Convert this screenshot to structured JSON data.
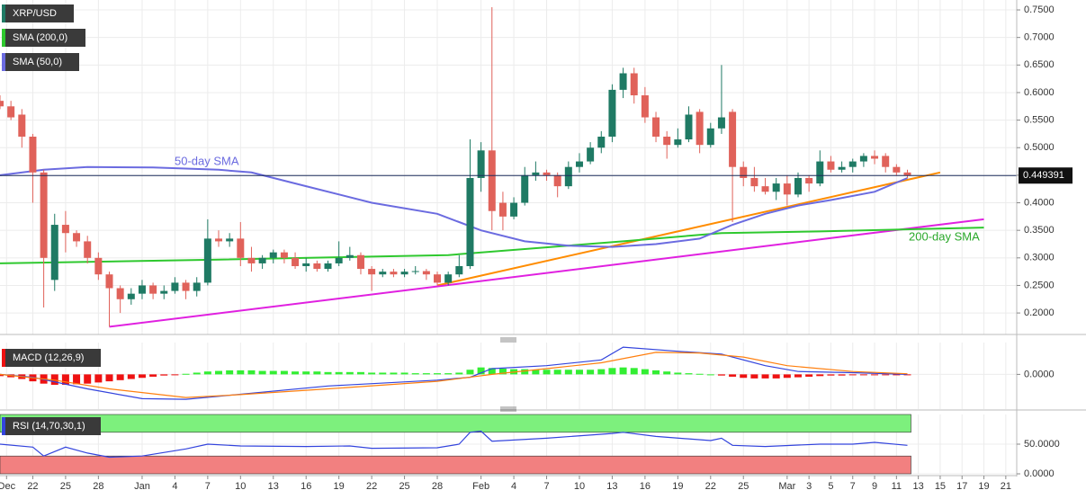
{
  "chart_data": [
    {
      "type": "candlestick",
      "name": "XRP/USD",
      "up_color": "#1f7a64",
      "down_color": "#e0625a",
      "x": [
        0,
        1,
        2,
        3,
        4,
        5,
        6,
        7,
        8,
        9,
        10,
        11,
        12,
        13,
        14,
        15,
        16,
        17,
        18,
        19,
        20,
        21,
        22,
        23,
        24,
        25,
        26,
        27,
        28,
        29,
        30,
        31,
        32,
        33,
        34,
        35,
        36,
        37,
        38,
        39,
        40,
        41,
        42,
        43,
        44,
        45,
        46,
        47,
        48,
        49,
        50,
        51,
        52,
        53,
        54,
        55,
        56,
        57,
        58,
        59,
        60,
        61,
        62,
        63,
        64,
        65,
        66,
        67,
        68,
        69,
        70,
        71,
        72,
        73,
        74,
        75,
        76,
        77,
        78,
        79,
        80,
        81,
        82,
        83
      ],
      "open": [
        0.585,
        0.575,
        0.56,
        0.52,
        0.455,
        0.26,
        0.36,
        0.345,
        0.33,
        0.3,
        0.27,
        0.245,
        0.225,
        0.235,
        0.25,
        0.235,
        0.24,
        0.255,
        0.24,
        0.255,
        0.335,
        0.33,
        0.335,
        0.3,
        0.29,
        0.3,
        0.31,
        0.3,
        0.285,
        0.29,
        0.28,
        0.29,
        0.3,
        0.305,
        0.28,
        0.27,
        0.275,
        0.27,
        0.275,
        0.276,
        0.27,
        0.255,
        0.27,
        0.285,
        0.445,
        0.495,
        0.4,
        0.375,
        0.4,
        0.45,
        0.455,
        0.45,
        0.43,
        0.465,
        0.475,
        0.5,
        0.52,
        0.605,
        0.635,
        0.595,
        0.555,
        0.52,
        0.505,
        0.515,
        0.565,
        0.505,
        0.535,
        0.565,
        0.465,
        0.445,
        0.43,
        0.42,
        0.435,
        0.415,
        0.445,
        0.435,
        0.475,
        0.46,
        0.465,
        0.475,
        0.485,
        0.485,
        0.465,
        0.455
      ],
      "high": [
        0.595,
        0.585,
        0.57,
        0.525,
        0.46,
        0.38,
        0.385,
        0.35,
        0.34,
        0.31,
        0.275,
        0.25,
        0.245,
        0.26,
        0.255,
        0.25,
        0.265,
        0.26,
        0.265,
        0.37,
        0.35,
        0.345,
        0.365,
        0.32,
        0.305,
        0.315,
        0.315,
        0.31,
        0.3,
        0.295,
        0.295,
        0.33,
        0.32,
        0.31,
        0.285,
        0.28,
        0.28,
        0.28,
        0.285,
        0.28,
        0.275,
        0.275,
        0.305,
        0.515,
        0.51,
        0.755,
        0.42,
        0.41,
        0.465,
        0.475,
        0.46,
        0.455,
        0.475,
        0.49,
        0.51,
        0.53,
        0.615,
        0.645,
        0.645,
        0.61,
        0.565,
        0.53,
        0.535,
        0.575,
        0.57,
        0.545,
        0.65,
        0.57,
        0.475,
        0.465,
        0.445,
        0.445,
        0.45,
        0.455,
        0.45,
        0.495,
        0.485,
        0.475,
        0.48,
        0.49,
        0.495,
        0.49,
        0.47,
        0.46
      ],
      "low": [
        0.57,
        0.55,
        0.5,
        0.4,
        0.21,
        0.24,
        0.31,
        0.32,
        0.29,
        0.26,
        0.175,
        0.2,
        0.215,
        0.225,
        0.225,
        0.225,
        0.235,
        0.225,
        0.23,
        0.25,
        0.32,
        0.32,
        0.285,
        0.275,
        0.28,
        0.29,
        0.29,
        0.28,
        0.275,
        0.275,
        0.275,
        0.285,
        0.295,
        0.27,
        0.24,
        0.265,
        0.265,
        0.265,
        0.27,
        0.26,
        0.25,
        0.25,
        0.265,
        0.28,
        0.42,
        0.35,
        0.35,
        0.37,
        0.395,
        0.44,
        0.44,
        0.41,
        0.425,
        0.455,
        0.47,
        0.49,
        0.51,
        0.59,
        0.58,
        0.545,
        0.51,
        0.48,
        0.5,
        0.51,
        0.49,
        0.5,
        0.525,
        0.365,
        0.43,
        0.42,
        0.415,
        0.405,
        0.395,
        0.41,
        0.42,
        0.43,
        0.455,
        0.455,
        0.455,
        0.465,
        0.47,
        0.455,
        0.45,
        0.445
      ],
      "close": [
        0.575,
        0.555,
        0.52,
        0.455,
        0.3,
        0.36,
        0.345,
        0.33,
        0.3,
        0.27,
        0.245,
        0.225,
        0.235,
        0.25,
        0.235,
        0.24,
        0.255,
        0.24,
        0.255,
        0.335,
        0.33,
        0.335,
        0.3,
        0.29,
        0.3,
        0.31,
        0.3,
        0.285,
        0.29,
        0.28,
        0.29,
        0.3,
        0.305,
        0.28,
        0.27,
        0.275,
        0.27,
        0.275,
        0.276,
        0.27,
        0.255,
        0.27,
        0.285,
        0.445,
        0.495,
        0.385,
        0.375,
        0.4,
        0.45,
        0.455,
        0.45,
        0.43,
        0.465,
        0.475,
        0.5,
        0.52,
        0.605,
        0.635,
        0.595,
        0.555,
        0.52,
        0.505,
        0.515,
        0.56,
        0.505,
        0.535,
        0.555,
        0.465,
        0.445,
        0.43,
        0.42,
        0.435,
        0.415,
        0.445,
        0.435,
        0.475,
        0.46,
        0.465,
        0.475,
        0.485,
        0.48,
        0.465,
        0.455,
        0.449391
      ],
      "last_price": 0.449391,
      "lines": [
        {
          "name": "SMA (200,0)",
          "color": "#2ec82e",
          "x": [
            0,
            20,
            41,
            57,
            66,
            75,
            90
          ],
          "values": [
            0.29,
            0.297,
            0.305,
            0.33,
            0.345,
            0.348,
            0.355
          ]
        },
        {
          "name": "SMA (50,0)",
          "color": "#6b6be0",
          "x": [
            0,
            4,
            8,
            14,
            20,
            23,
            28,
            34,
            40,
            44,
            48,
            52,
            56,
            60,
            64,
            67,
            70,
            73,
            76,
            80,
            83
          ],
          "values": [
            0.45,
            0.46,
            0.465,
            0.464,
            0.46,
            0.455,
            0.43,
            0.4,
            0.38,
            0.35,
            0.33,
            0.322,
            0.32,
            0.325,
            0.335,
            0.36,
            0.38,
            0.395,
            0.405,
            0.42,
            0.445
          ]
        }
      ],
      "trendlines": [
        {
          "color": "#ff8c00",
          "x": [
            40,
            86
          ],
          "values": [
            0.25,
            0.455
          ]
        },
        {
          "color": "#e020e0",
          "x": [
            10,
            90
          ],
          "values": [
            0.175,
            0.37
          ]
        }
      ],
      "annotations": [
        "50-day SMA",
        "200-day SMA"
      ],
      "xlim": [
        0,
        93
      ],
      "ylim": [
        0.161,
        0.768
      ],
      "yticks": [
        {
          "value": 0.2,
          "label": "0.2000"
        },
        {
          "value": 0.25,
          "label": "0.2500"
        },
        {
          "value": 0.3,
          "label": "0.3000"
        },
        {
          "value": 0.35,
          "label": "0.3500"
        },
        {
          "value": 0.4,
          "label": "0.4000"
        },
        {
          "value": 0.45,
          "label": "0.4500"
        },
        {
          "value": 0.5,
          "label": "0.5000"
        },
        {
          "value": 0.55,
          "label": "0.5500"
        },
        {
          "value": 0.6,
          "label": "0.6000"
        },
        {
          "value": 0.65,
          "label": "0.6500"
        },
        {
          "value": 0.7,
          "label": "0.7000"
        },
        {
          "value": 0.75,
          "label": "0.7500"
        }
      ]
    },
    {
      "type": "macd",
      "name": "MACD (12,26,9)",
      "up_color": "#33ee33",
      "down_color": "#ee1111",
      "histogram": [
        -0.003,
        -0.005,
        -0.008,
        -0.012,
        -0.016,
        -0.018,
        -0.018,
        -0.017,
        -0.016,
        -0.014,
        -0.012,
        -0.01,
        -0.008,
        -0.006,
        -0.004,
        -0.002,
        -0.001,
        0.001,
        0.003,
        0.005,
        0.006,
        0.007,
        0.007,
        0.007,
        0.006,
        0.006,
        0.006,
        0.005,
        0.005,
        0.005,
        0.004,
        0.004,
        0.004,
        0.004,
        0.003,
        0.003,
        0.003,
        0.003,
        0.002,
        0.002,
        0.002,
        0.002,
        0.003,
        0.008,
        0.012,
        0.011,
        0.01,
        0.009,
        0.009,
        0.008,
        0.008,
        0.008,
        0.008,
        0.008,
        0.008,
        0.009,
        0.011,
        0.012,
        0.011,
        0.009,
        0.007,
        0.005,
        0.003,
        0.002,
        0.001,
        0,
        -0.002,
        -0.004,
        -0.006,
        -0.007,
        -0.007,
        -0.007,
        -0.006,
        -0.005,
        -0.004,
        -0.003,
        -0.002,
        -0.002,
        -0.001,
        -0.001,
        -0.001,
        -0.001,
        -0.001,
        -0.001
      ],
      "lines": [
        {
          "color": "#3344dd",
          "x": [
            0,
            3,
            8,
            13,
            17,
            20,
            30,
            40,
            43,
            45,
            50,
            55,
            57,
            62,
            66,
            70,
            73,
            78,
            83
          ],
          "values": [
            0,
            -0.005,
            -0.025,
            -0.042,
            -0.043,
            -0.038,
            -0.02,
            -0.01,
            -0.005,
            0.01,
            0.015,
            0.025,
            0.047,
            0.04,
            0.035,
            0.015,
            0.005,
            0.003,
            0
          ]
        },
        {
          "color": "#ff7f0e",
          "x": [
            0,
            5,
            10,
            17,
            22,
            30,
            40,
            45,
            50,
            55,
            60,
            64,
            68,
            72,
            78,
            83
          ],
          "values": [
            0,
            -0.01,
            -0.025,
            -0.04,
            -0.035,
            -0.025,
            -0.012,
            0,
            0.01,
            0.02,
            0.038,
            0.037,
            0.03,
            0.015,
            0.005,
            0.001
          ]
        }
      ],
      "ylim": [
        -0.06,
        0.055
      ],
      "yticks": [
        {
          "value": 0,
          "label": "0.0000"
        }
      ]
    },
    {
      "type": "rsi",
      "name": "RSI (14,70,30,1)",
      "upper": 70,
      "lower": 30,
      "upper_color": "#7df07d",
      "lower_color": "#f28080",
      "line_color": "#3344dd",
      "x": [
        0,
        3,
        4,
        6,
        8,
        10,
        13,
        17,
        19,
        22,
        28,
        32,
        34,
        40,
        42,
        43,
        44,
        45,
        50,
        56,
        57,
        60,
        65,
        66,
        67,
        70,
        75,
        78,
        80,
        83
      ],
      "values": [
        50,
        45,
        30,
        45,
        35,
        28,
        30,
        42,
        50,
        47,
        46,
        47,
        43,
        44,
        50,
        70,
        72,
        55,
        60,
        68,
        70,
        63,
        56,
        60,
        48,
        46,
        50,
        50,
        53,
        48
      ],
      "ylim": [
        0,
        100
      ],
      "yticks": [
        {
          "value": 0,
          "label": "0.0000"
        },
        {
          "value": 50,
          "label": "50.0000"
        }
      ],
      "xticks": [
        {
          "value": 0.6,
          "label": "Dec"
        },
        {
          "value": 3,
          "label": "22"
        },
        {
          "value": 6,
          "label": "25"
        },
        {
          "value": 9,
          "label": "28"
        },
        {
          "value": 13,
          "label": "Jan"
        },
        {
          "value": 16,
          "label": "4"
        },
        {
          "value": 19,
          "label": "7"
        },
        {
          "value": 22,
          "label": "10"
        },
        {
          "value": 25,
          "label": "13"
        },
        {
          "value": 28,
          "label": "16"
        },
        {
          "value": 31,
          "label": "19"
        },
        {
          "value": 34,
          "label": "22"
        },
        {
          "value": 37,
          "label": "25"
        },
        {
          "value": 40,
          "label": "28"
        },
        {
          "value": 44,
          "label": "Feb"
        },
        {
          "value": 47,
          "label": "4"
        },
        {
          "value": 50,
          "label": "7"
        },
        {
          "value": 53,
          "label": "10"
        },
        {
          "value": 56,
          "label": "13"
        },
        {
          "value": 59,
          "label": "16"
        },
        {
          "value": 62,
          "label": "19"
        },
        {
          "value": 65,
          "label": "22"
        },
        {
          "value": 68,
          "label": "25"
        },
        {
          "value": 72,
          "label": "Mar"
        },
        {
          "value": 74,
          "label": "3"
        },
        {
          "value": 76,
          "label": "5"
        },
        {
          "value": 78,
          "label": "7"
        },
        {
          "value": 80,
          "label": "9"
        },
        {
          "value": 82,
          "label": "11"
        },
        {
          "value": 84,
          "label": "13"
        },
        {
          "value": 86,
          "label": "15"
        },
        {
          "value": 88,
          "label": "17"
        },
        {
          "value": 90,
          "label": "19"
        },
        {
          "value": 92,
          "label": "21"
        }
      ]
    }
  ]
}
